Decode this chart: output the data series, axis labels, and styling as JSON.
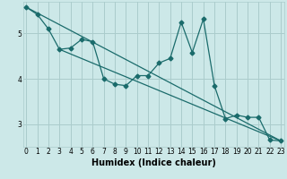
{
  "bg_color": "#cce8e8",
  "grid_color": "#aacccc",
  "line_color": "#1a6b6b",
  "xlabel": "Humidex (Indice chaleur)",
  "xlabel_fontsize": 7,
  "yticks": [
    3,
    4,
    5
  ],
  "xticks": [
    0,
    1,
    2,
    3,
    4,
    5,
    6,
    7,
    8,
    9,
    10,
    11,
    12,
    13,
    14,
    15,
    16,
    17,
    18,
    19,
    20,
    21,
    22,
    23
  ],
  "xlim": [
    -0.3,
    23.3
  ],
  "ylim": [
    2.5,
    5.7
  ],
  "data_x": [
    0,
    1,
    2,
    3,
    4,
    5,
    6,
    7,
    8,
    9,
    10,
    11,
    12,
    13,
    14,
    15,
    16,
    17,
    18,
    19,
    20,
    21,
    22,
    23
  ],
  "data_y": [
    5.58,
    5.42,
    5.1,
    4.65,
    4.68,
    4.87,
    4.82,
    4.0,
    3.88,
    3.85,
    4.07,
    4.07,
    4.35,
    4.45,
    5.25,
    4.58,
    5.32,
    3.85,
    3.12,
    3.2,
    3.15,
    3.15,
    2.65,
    2.63
  ],
  "trend1_x": [
    0,
    23
  ],
  "trend1_y": [
    5.58,
    2.63
  ],
  "trend2_x": [
    3,
    23
  ],
  "trend2_y": [
    4.65,
    2.63
  ],
  "marker_size": 2.5,
  "line_width": 0.9,
  "tick_fontsize": 5.5
}
